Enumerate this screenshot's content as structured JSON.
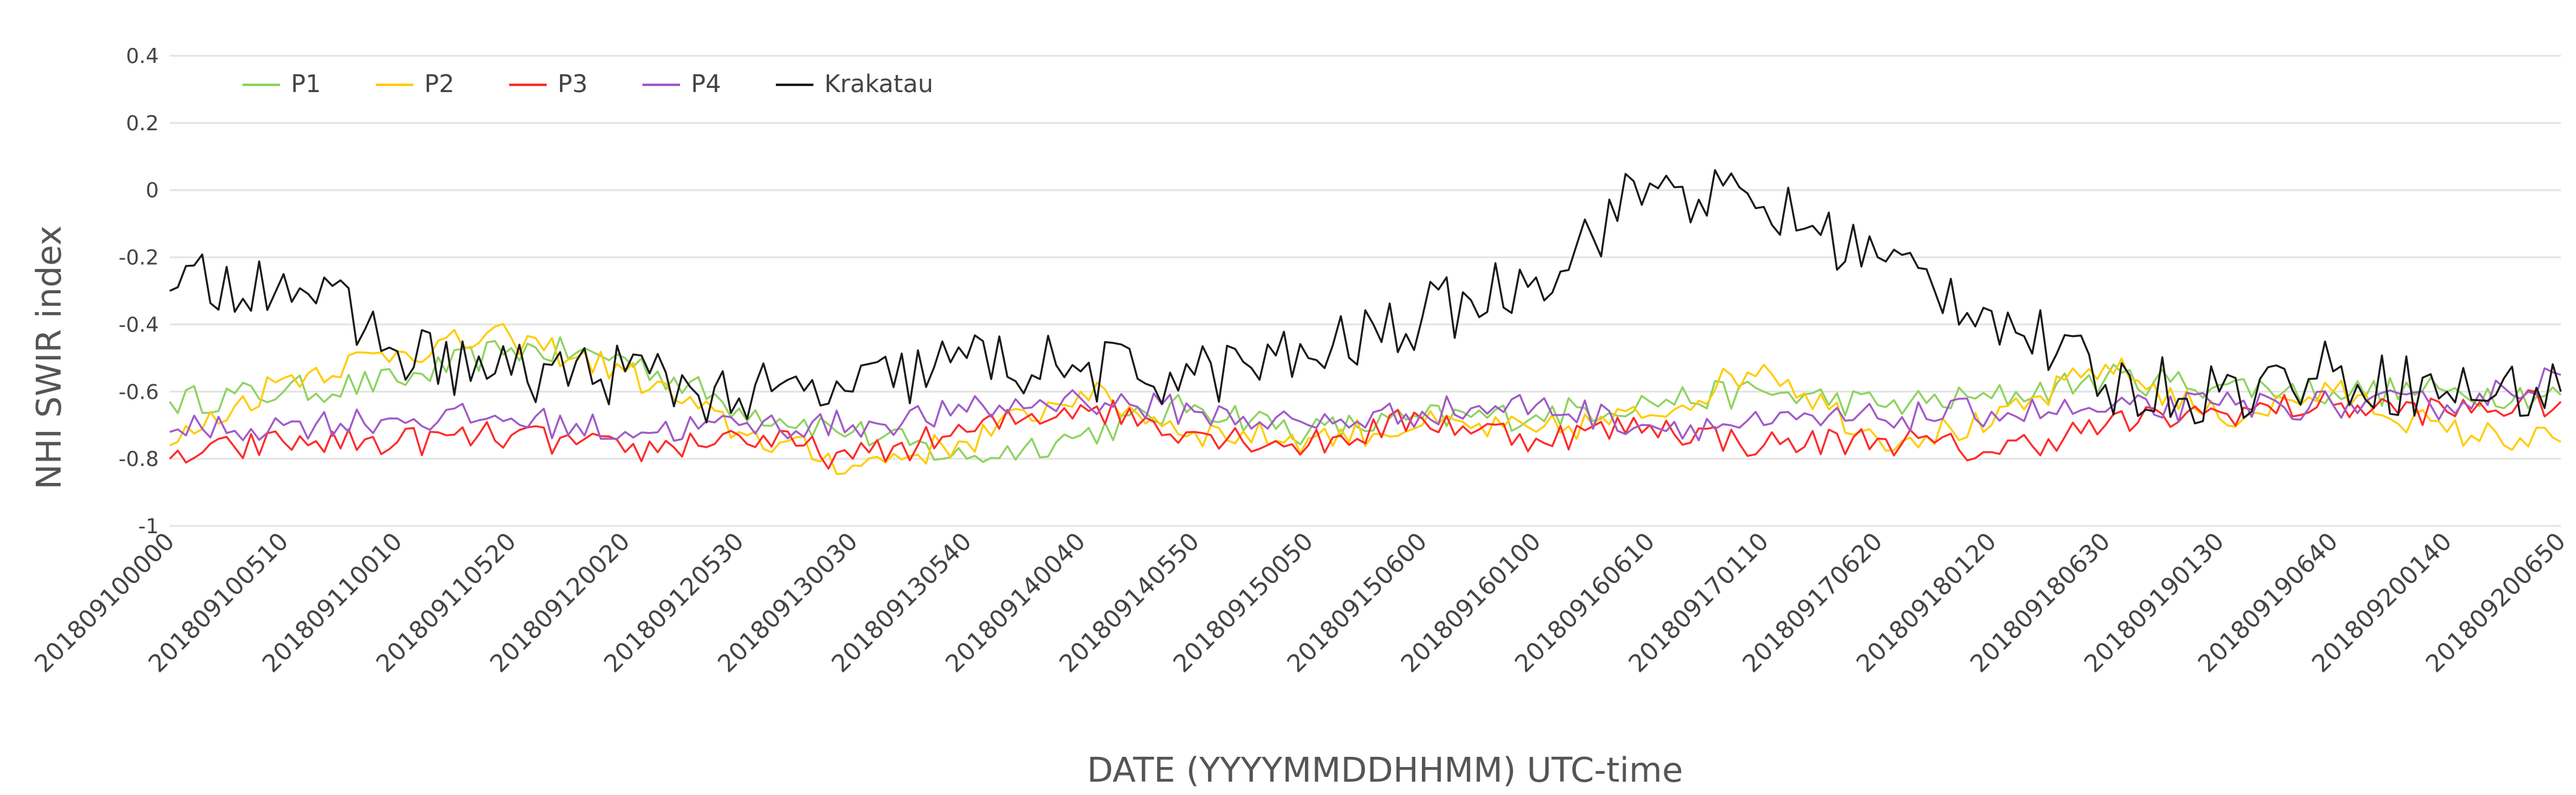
{
  "chart_data": {
    "type": "line",
    "title": "",
    "xlabel": "DATE (YYYYMMDDHHMM) UTC-time",
    "ylabel": "NHI SWIR index",
    "ylim": [
      -1,
      0.4
    ],
    "yticks": [
      0.4,
      0.2,
      0,
      -0.2,
      -0.4,
      -0.6,
      -0.8,
      -1
    ],
    "ytick_labels": [
      "0.4",
      "0.2",
      "0",
      "-0.2",
      "-0.4",
      "-0.6",
      "-0.8",
      "-1"
    ],
    "grid": true,
    "legend_position": "top-left",
    "x": [
      "201809100000",
      "201809100510",
      "201809110010",
      "201809110520",
      "201809120020",
      "201809120530",
      "201809130030",
      "201809130540",
      "201809140040",
      "201809140550",
      "201809150050",
      "201809150600",
      "201809160100",
      "201809160610",
      "201809170110",
      "201809170620",
      "201809180120",
      "201809180630",
      "201809190130",
      "201809190640",
      "201809200140",
      "201809200650"
    ],
    "series": [
      {
        "name": "P1",
        "color": "#8dd35f",
        "values": [
          -0.63,
          -0.6,
          -0.57,
          -0.47,
          -0.5,
          -0.65,
          -0.72,
          -0.8,
          -0.73,
          -0.64,
          -0.72,
          -0.68,
          -0.67,
          -0.63,
          -0.6,
          -0.64,
          -0.62,
          -0.56,
          -0.58,
          -0.6,
          -0.6,
          -0.61
        ]
      },
      {
        "name": "P2",
        "color": "#ffcc00",
        "values": [
          -0.76,
          -0.56,
          -0.48,
          -0.44,
          -0.54,
          -0.72,
          -0.82,
          -0.75,
          -0.6,
          -0.72,
          -0.74,
          -0.7,
          -0.72,
          -0.67,
          -0.52,
          -0.74,
          -0.7,
          -0.52,
          -0.68,
          -0.6,
          -0.72,
          -0.75
        ]
      },
      {
        "name": "P3",
        "color": "#ff2a2a",
        "values": [
          -0.8,
          -0.75,
          -0.75,
          -0.73,
          -0.78,
          -0.73,
          -0.8,
          -0.72,
          -0.64,
          -0.72,
          -0.76,
          -0.68,
          -0.74,
          -0.7,
          -0.76,
          -0.74,
          -0.78,
          -0.7,
          -0.66,
          -0.64,
          -0.66,
          -0.63
        ]
      },
      {
        "name": "P4",
        "color": "#a05ac8",
        "values": [
          -0.72,
          -0.7,
          -0.68,
          -0.68,
          -0.72,
          -0.7,
          -0.7,
          -0.66,
          -0.62,
          -0.66,
          -0.7,
          -0.66,
          -0.64,
          -0.7,
          -0.7,
          -0.68,
          -0.66,
          -0.66,
          -0.64,
          -0.64,
          -0.64,
          -0.55
        ]
      },
      {
        "name": "Krakatau",
        "color": "#1a1a1a",
        "values": [
          -0.3,
          -0.25,
          -0.48,
          -0.55,
          -0.54,
          -0.62,
          -0.6,
          -0.5,
          -0.54,
          -0.55,
          -0.5,
          -0.38,
          -0.26,
          0.02,
          -0.05,
          -0.2,
          -0.36,
          -0.58,
          -0.6,
          -0.54,
          -0.6,
          -0.6
        ]
      }
    ]
  }
}
